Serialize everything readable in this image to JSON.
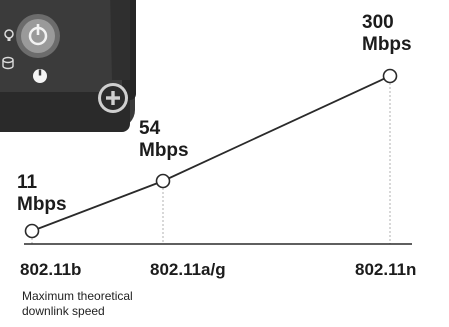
{
  "chart_data": {
    "type": "line",
    "categories": [
      "802.11b",
      "802.11a/g",
      "802.11n"
    ],
    "values": [
      11,
      54,
      300
    ],
    "unit": "Mbps",
    "ylim": [
      0,
      300
    ],
    "grid": false,
    "legend": "none",
    "caption": [
      "Maximum theoretical",
      "downlink speed"
    ],
    "data_labels": [
      {
        "value": "11",
        "unit": "Mbps"
      },
      {
        "value": "54",
        "unit": "Mbps"
      },
      {
        "value": "300",
        "unit": "Mbps"
      }
    ]
  },
  "device_image": {
    "icon_name": "router-hardware-icon",
    "power_icon": "power-icon",
    "colors": {
      "body": "#3a3a3a",
      "dark": "#1f1f1f",
      "highlight": "#8a8a8a"
    }
  },
  "colors": {
    "line": "#2a2a2a",
    "guide": "#b0b0b0",
    "axis": "#2a2a2a",
    "marker_fill": "#ffffff",
    "text": "#1c1c1c"
  }
}
